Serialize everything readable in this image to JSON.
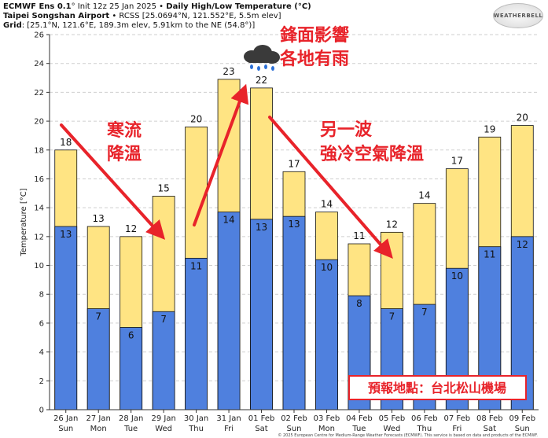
{
  "header": {
    "line1_bold": "ECMWF Ens 0.1",
    "line1_rest": "° Init 12z 25 Jan 2025 • ",
    "line1_title": "Daily High/Low Temperature (°C)",
    "line2_bold": "Taipei Songshan Airport",
    "line2_rest": " • RCSS [25.0694°N, 121.552°E, 5.5m elev]",
    "line3_bold": "Grid",
    "line3_rest": ": [25.1°N, 121.6°E, 189.3m elev, 5.91km to the NE (54.8°)]"
  },
  "logo_text": "WEATHERBELL",
  "footer_text": "© 2025 European Centre for Medium-Range Weather Forecasts (ECMWF). This service is based on data and products of the ECMWF.",
  "annotations": {
    "cold_current": [
      "寒流",
      "降溫"
    ],
    "front": [
      "鋒面影響",
      "各地有雨"
    ],
    "another_wave": [
      "另一波",
      "強冷空氣降溫"
    ],
    "location_box": "預報地點：台北松山機場"
  },
  "colors": {
    "high_bar": "#FFE483",
    "low_bar": "#4F80DE",
    "annotation_red": "#E8232A",
    "grid": "#cfcfcf"
  },
  "chart_data": {
    "type": "bar",
    "ylabel": "Temperature [°C]",
    "ylim": [
      0,
      26
    ],
    "yticks": [
      0,
      2,
      4,
      6,
      8,
      10,
      12,
      14,
      16,
      18,
      20,
      22,
      24,
      26
    ],
    "grid": true,
    "categories": [
      {
        "date": "26 Jan",
        "day": "Sun"
      },
      {
        "date": "27 Jan",
        "day": "Mon"
      },
      {
        "date": "28 Jan",
        "day": "Tue"
      },
      {
        "date": "29 Jan",
        "day": "Wed"
      },
      {
        "date": "30 Jan",
        "day": "Thu"
      },
      {
        "date": "31 Jan",
        "day": "Fri"
      },
      {
        "date": "01 Feb",
        "day": "Sat"
      },
      {
        "date": "02 Feb",
        "day": "Sun"
      },
      {
        "date": "03 Feb",
        "day": "Mon"
      },
      {
        "date": "04 Feb",
        "day": "Tue"
      },
      {
        "date": "05 Feb",
        "day": "Wed"
      },
      {
        "date": "06 Feb",
        "day": "Thu"
      },
      {
        "date": "07 Feb",
        "day": "Fri"
      },
      {
        "date": "08 Feb",
        "day": "Sat"
      },
      {
        "date": "09 Feb",
        "day": "Sun"
      }
    ],
    "series": [
      {
        "values": [
          18.0,
          12.7,
          12.0,
          14.8,
          19.6,
          22.9,
          22.3,
          16.5,
          13.7,
          11.5,
          12.3,
          14.3,
          16.7,
          18.9,
          19.7
        ],
        "labels": [
          "18",
          "13",
          "12",
          "15",
          "20",
          "23",
          "22",
          "17",
          "14",
          "11",
          "12",
          "14",
          "17",
          "19",
          "20"
        ]
      },
      {
        "values": [
          12.7,
          7.0,
          5.7,
          6.8,
          10.5,
          13.7,
          13.2,
          13.4,
          10.4,
          7.9,
          7.0,
          7.3,
          9.8,
          11.3,
          12.0
        ],
        "labels": [
          "13",
          "7",
          "6",
          "7",
          "11",
          "14",
          "13",
          "13",
          "10",
          "8",
          "7",
          "7",
          "10",
          "11",
          "12"
        ]
      }
    ]
  }
}
